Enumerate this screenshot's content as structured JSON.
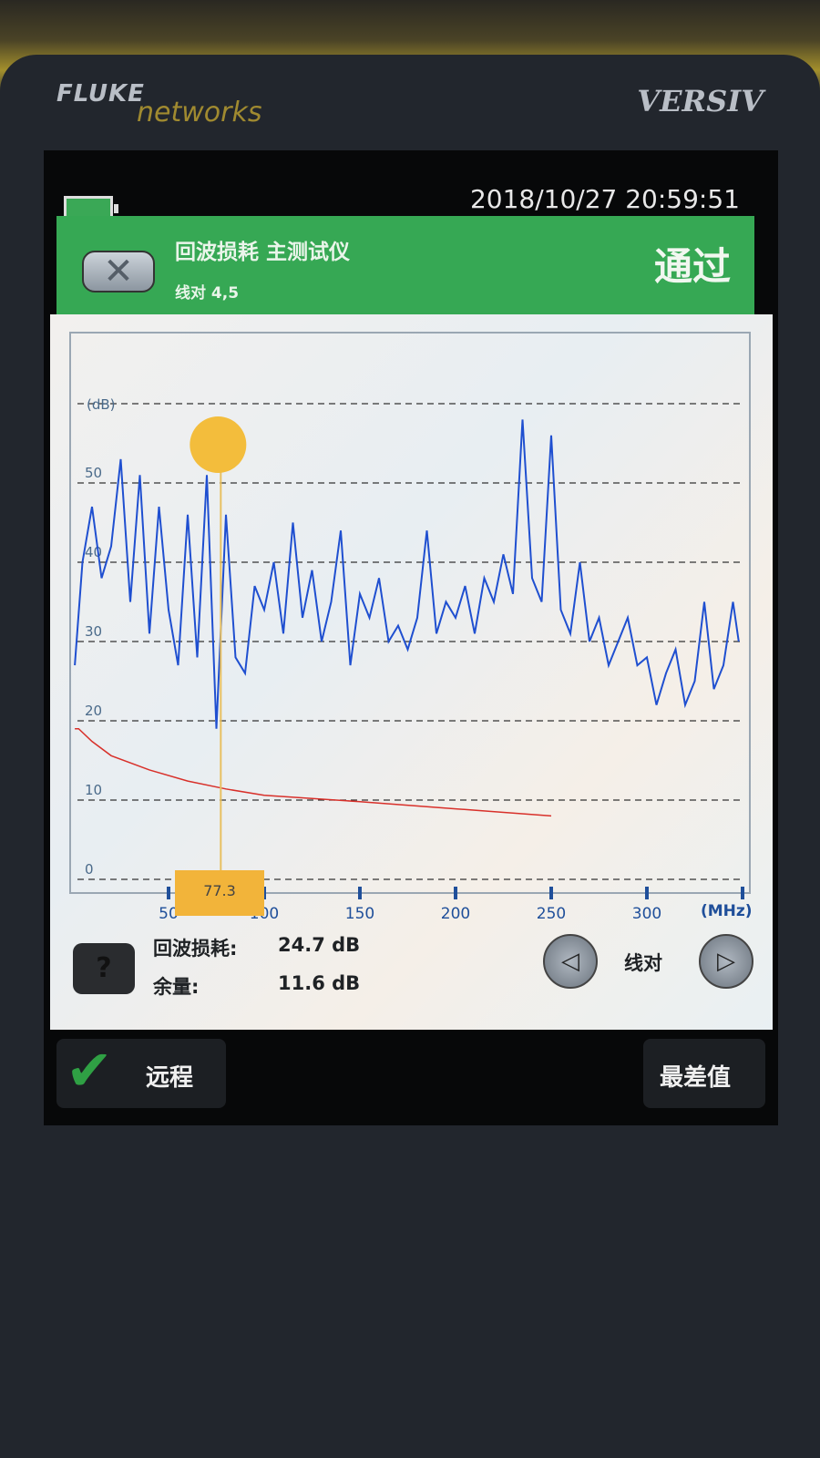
{
  "device": {
    "logo_brand": "FLUKE",
    "logo_sub": "networks",
    "model": "VERSIV"
  },
  "status_bar": {
    "datetime": "2018/10/27  20:59:51",
    "battery_level": 1.0,
    "battery_color": "#3aa856"
  },
  "header": {
    "title": "回波损耗 主测试仪",
    "subtitle": "线对 4,5",
    "status": "通过",
    "color": "#36a854",
    "close_icon": "close-x-icon"
  },
  "chart_data": {
    "type": "line",
    "ylabel": "(dB)",
    "xlabel": "(MHz)",
    "xlim": [
      1,
      350
    ],
    "ylim": [
      0,
      60
    ],
    "yticks": [
      "0",
      "10",
      "20",
      "30",
      "40",
      "50"
    ],
    "xticks": [
      "50",
      "100",
      "150",
      "200",
      "250",
      "300"
    ],
    "grid": true,
    "series": [
      {
        "role": "measurement",
        "color": "#1f4fd0",
        "x": [
          1,
          5,
          10,
          15,
          20,
          25,
          30,
          35,
          40,
          45,
          50,
          55,
          60,
          65,
          70,
          75,
          80,
          85,
          90,
          95,
          100,
          105,
          110,
          115,
          120,
          125,
          130,
          135,
          140,
          145,
          150,
          155,
          160,
          165,
          170,
          175,
          180,
          185,
          190,
          195,
          200,
          205,
          210,
          215,
          220,
          225,
          230,
          235,
          240,
          245,
          250,
          255,
          260,
          265,
          270,
          275,
          280,
          285,
          290,
          295,
          300,
          305,
          310,
          315,
          320,
          325,
          330,
          335,
          340,
          345,
          348
        ],
        "y": [
          27,
          40,
          47,
          38,
          42,
          53,
          35,
          51,
          31,
          47,
          34,
          27,
          46,
          28,
          51,
          19,
          46,
          28,
          26,
          37,
          34,
          40,
          31,
          45,
          33,
          39,
          30,
          35,
          44,
          27,
          36,
          33,
          38,
          30,
          32,
          29,
          33,
          44,
          31,
          35,
          33,
          37,
          31,
          38,
          35,
          41,
          36,
          58,
          38,
          35,
          56,
          34,
          31,
          40,
          30,
          33,
          27,
          30,
          33,
          27,
          28,
          22,
          26,
          29,
          22,
          25,
          35,
          24,
          27,
          35,
          30
        ]
      },
      {
        "role": "limit",
        "color": "#d8302a",
        "x": [
          1,
          3,
          10,
          20,
          40,
          60,
          80,
          100,
          150,
          200,
          250
        ],
        "y": [
          19,
          19,
          17.4,
          15.6,
          13.8,
          12.4,
          11.4,
          10.6,
          9.8,
          8.9,
          8.0
        ]
      }
    ],
    "marker": {
      "frequency": "77.3"
    }
  },
  "readout": {
    "rl_label": "回波损耗:",
    "rl_value": "24.7 dB",
    "margin_label": "余量:",
    "margin_value": "11.6 dB",
    "help": "?"
  },
  "pair_nav": {
    "label": "线对",
    "prev": "◁",
    "next": "▷"
  },
  "bottom": {
    "remote_label": "远程",
    "worst_label": "最差值",
    "check_color": "#2fa044"
  }
}
